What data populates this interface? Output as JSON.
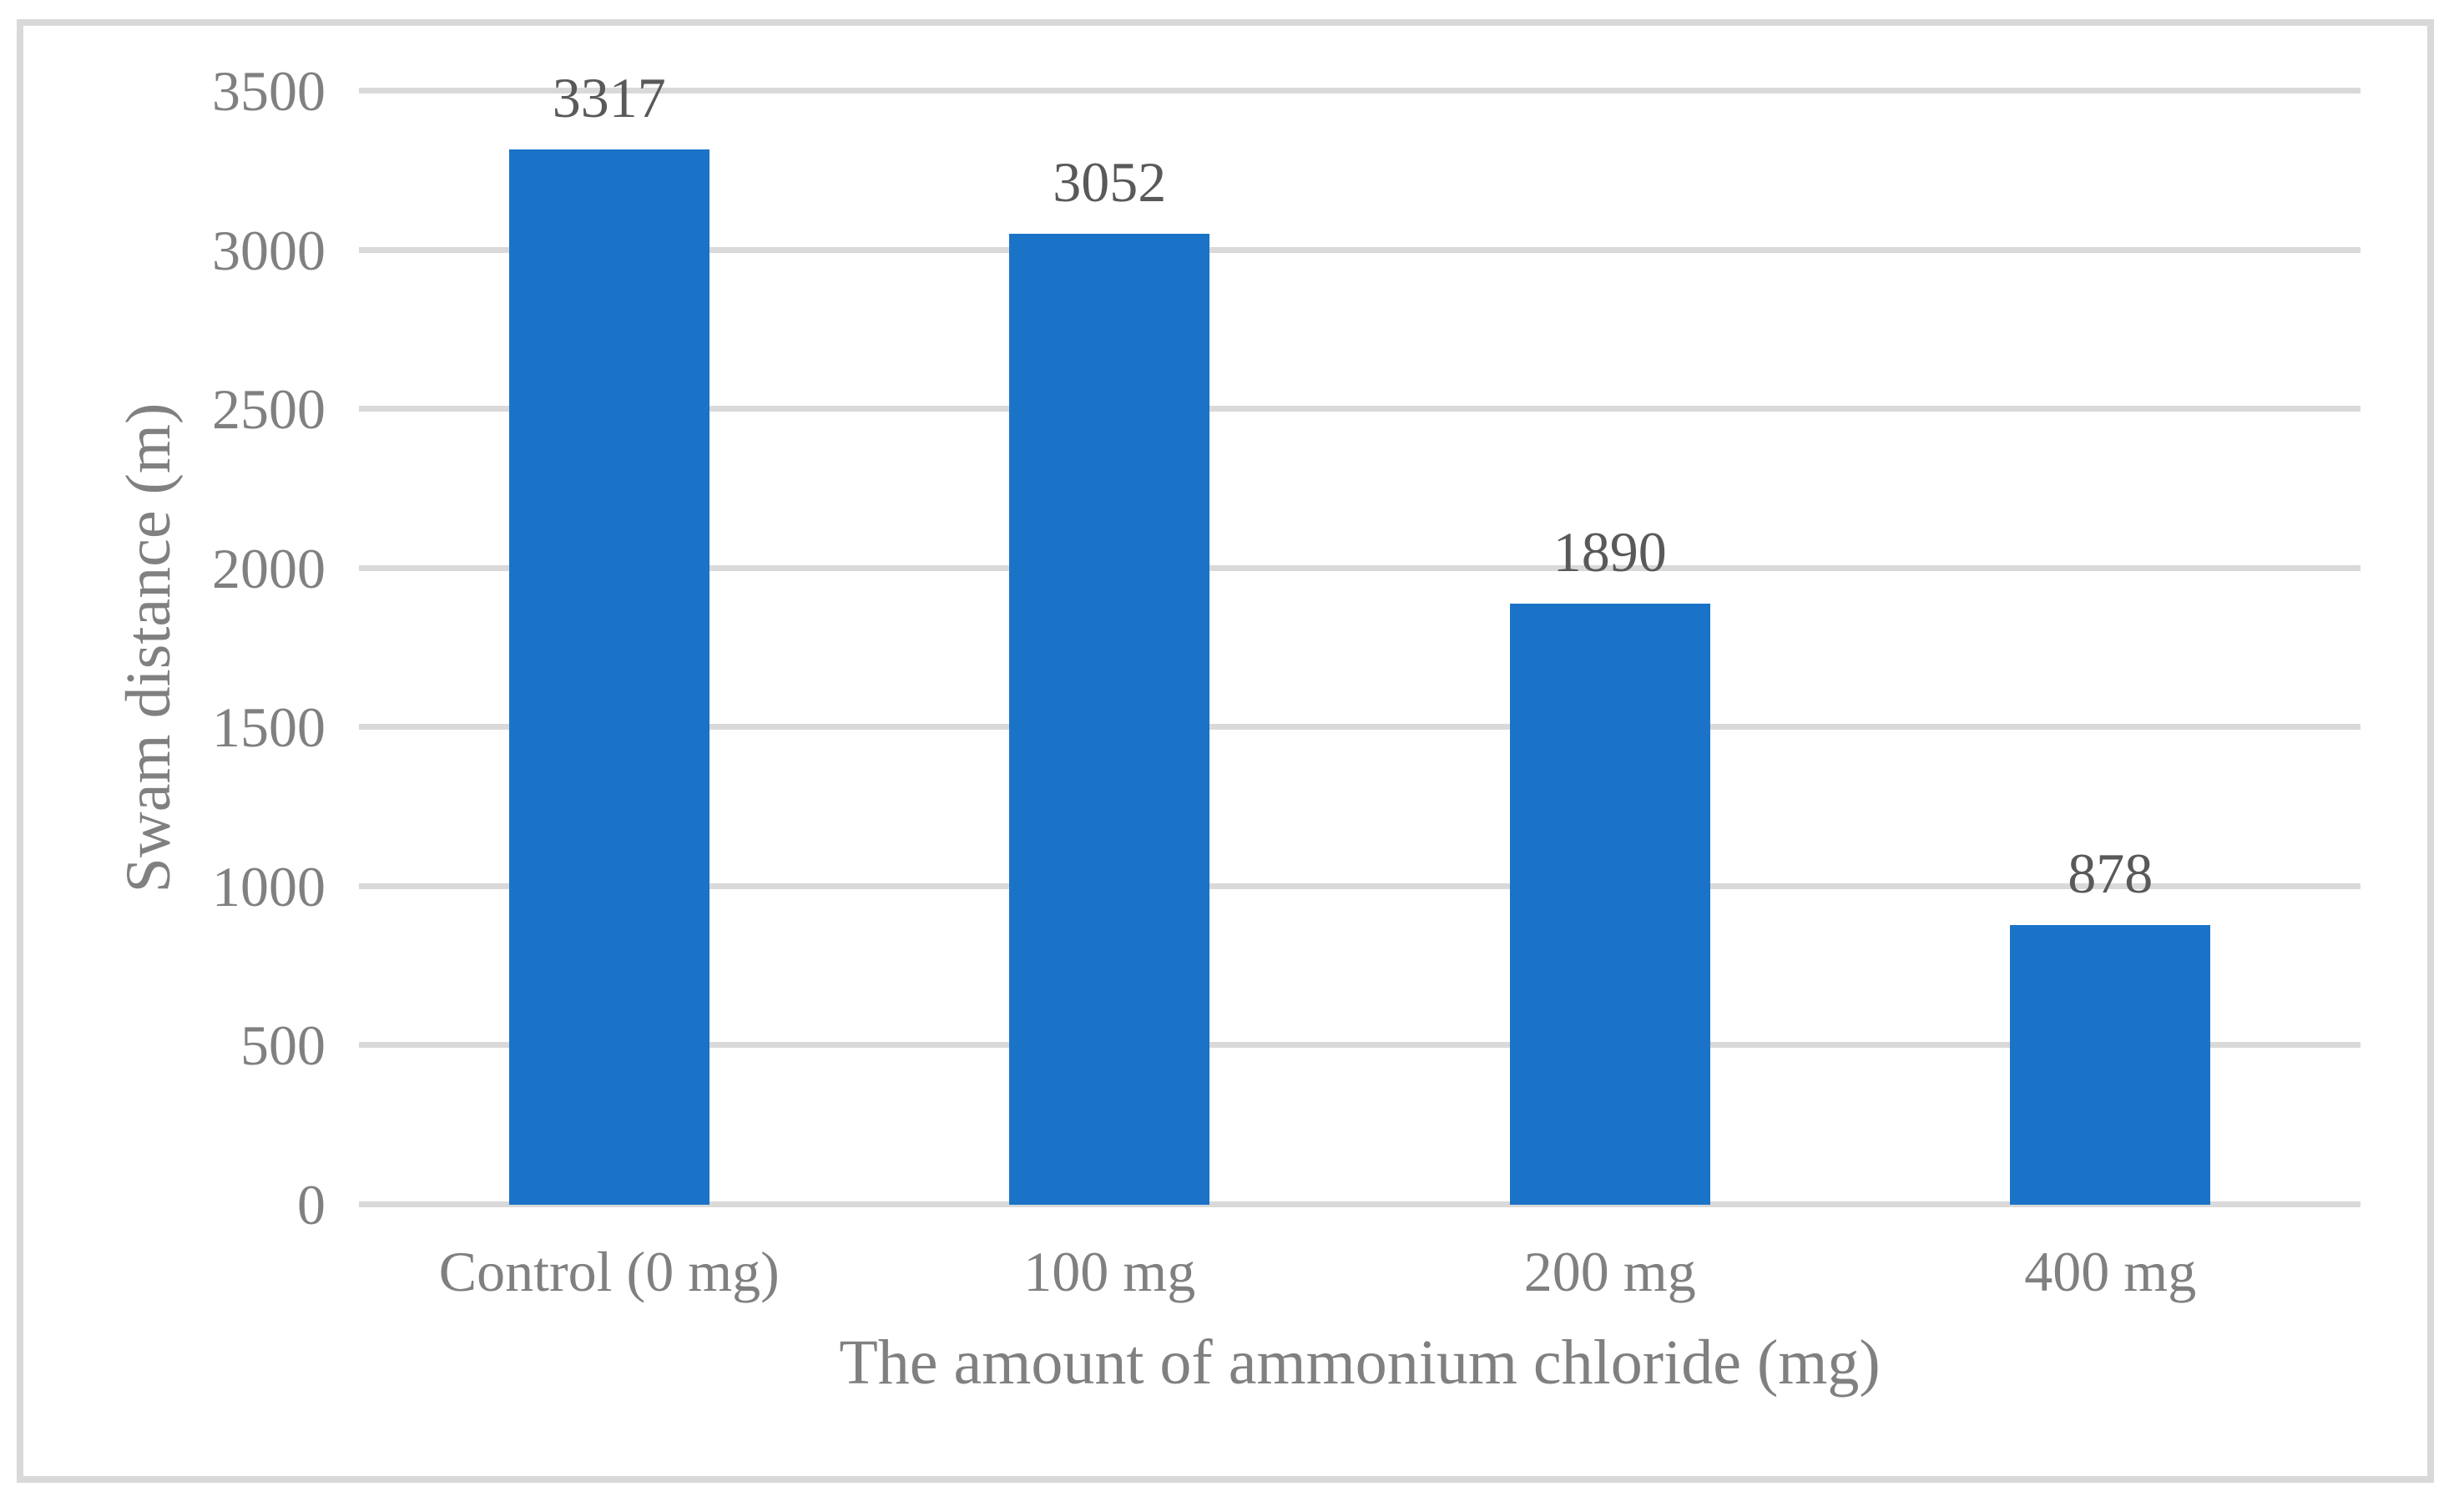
{
  "chart_data": {
    "type": "bar",
    "title": "",
    "categories": [
      "Control (0 mg)",
      "100 mg",
      "200 mg",
      "400 mg"
    ],
    "values": [
      3317,
      3052,
      1890,
      878
    ],
    "data_labels": [
      "3317",
      "3052",
      "1890",
      "878"
    ],
    "xlabel": "The amount of ammonium chloride (mg)",
    "ylabel": "Swam distance (m)",
    "ylim": [
      0,
      3500
    ],
    "ytick_interval": 500,
    "yticks": [
      0,
      500,
      1000,
      1500,
      2000,
      2500,
      3000,
      3500
    ],
    "grid": true,
    "legend_position": "none",
    "colors": {
      "bar": "#1B73C8",
      "gridline": "#D9D9D9",
      "frame_border": "#D9D9D9",
      "axis_text": "#808080",
      "data_label": "#595959",
      "background": "#FFFFFF"
    }
  }
}
